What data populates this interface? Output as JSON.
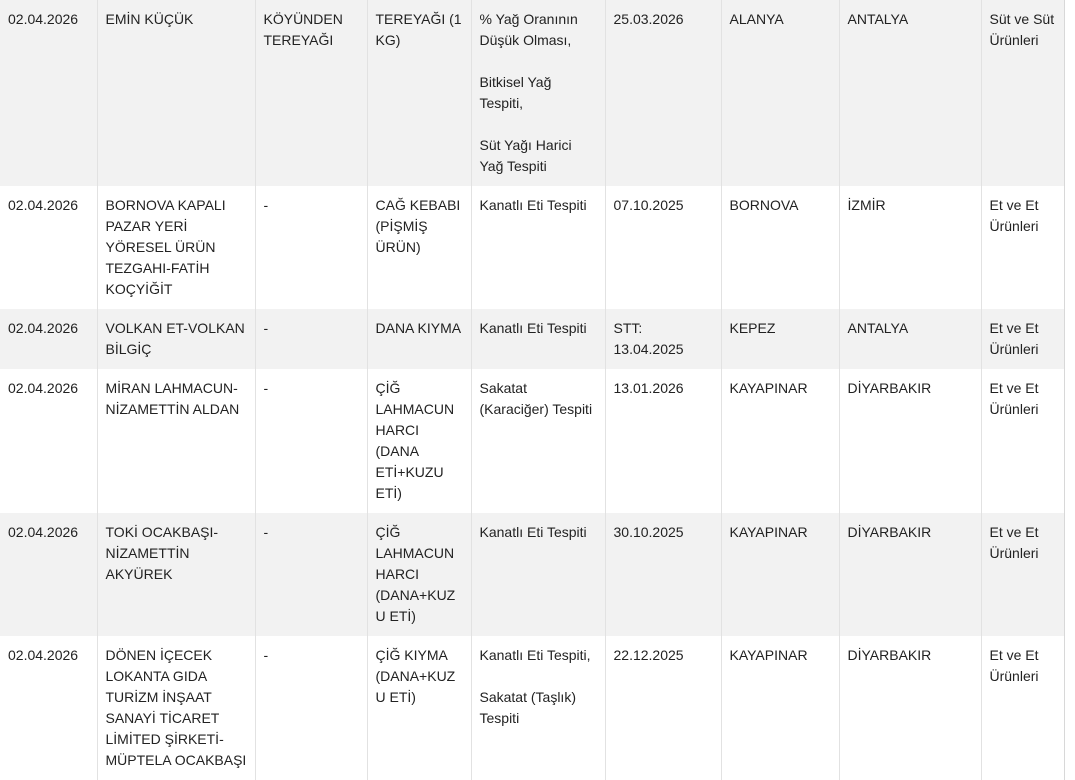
{
  "rows": [
    {
      "date": "02.04.2026",
      "company": "EMİN KÜÇÜK",
      "brand": "KÖYÜNDEN TEREYAĞI",
      "product": "TEREYAĞI (1 KG)",
      "findings": [
        "% Yağ Oranının Düşük Olması,",
        "Bitkisel Yağ Tespiti,",
        "Süt Yağı Harici Yağ Tespiti"
      ],
      "batch": "25.03.2026",
      "district": "ALANYA",
      "province": "ANTALYA",
      "category": "Süt ve Süt Ürünleri"
    },
    {
      "date": "02.04.2026",
      "company": "BORNOVA KAPALI PAZAR YERİ YÖRESEL ÜRÜN TEZGAHI-FATİH KOÇYİĞİT",
      "brand": "-",
      "product": "CAĞ KEBABI (PİŞMİŞ ÜRÜN)",
      "findings": [
        "Kanatlı Eti Tespiti"
      ],
      "batch": "07.10.2025",
      "district": "BORNOVA",
      "province": "İZMİR",
      "category": "Et ve Et Ürünleri"
    },
    {
      "date": "02.04.2026",
      "company": "VOLKAN ET-VOLKAN BİLGİÇ",
      "brand": "-",
      "product": "DANA KIYMA",
      "findings": [
        "Kanatlı Eti Tespiti"
      ],
      "batch": "STT: 13.04.2025",
      "district": "KEPEZ",
      "province": "ANTALYA",
      "category": "Et ve Et Ürünleri"
    },
    {
      "date": "02.04.2026",
      "company": "MİRAN LAHMACUN-NİZAMETTİN ALDAN",
      "brand": "-",
      "product": "ÇİĞ LAHMACUN HARCI (DANA ETİ+KUZU ETİ)",
      "findings": [
        "Sakatat (Karaciğer) Tespiti"
      ],
      "batch": "13.01.2026",
      "district": "KAYAPINAR",
      "province": "DİYARBAKIR",
      "category": "Et ve Et Ürünleri"
    },
    {
      "date": "02.04.2026",
      "company": "TOKİ OCAKBAŞI-NİZAMETTİN AKYÜREK",
      "brand": "-",
      "product": "ÇİĞ LAHMACUN HARCI (DANA+KUZU ETİ)",
      "findings": [
        "Kanatlı Eti Tespiti"
      ],
      "batch": "30.10.2025",
      "district": "KAYAPINAR",
      "province": "DİYARBAKIR",
      "category": "Et ve Et Ürünleri"
    },
    {
      "date": "02.04.2026",
      "company": "DÖNEN İÇECEK LOKANTA GIDA TURİZM İNŞAAT SANAYİ TİCARET LİMİTED ŞİRKETİ-MÜPTELA OCAKBAŞI",
      "brand": "-",
      "product": "ÇİĞ KIYMA (DANA+KUZU ETİ)",
      "findings": [
        "Kanatlı Eti Tespiti,",
        "Sakatat (Taşlık) Tespiti"
      ],
      "batch": "22.12.2025",
      "district": "KAYAPINAR",
      "province": "DİYARBAKIR",
      "category": "Et ve Et Ürünleri"
    }
  ]
}
